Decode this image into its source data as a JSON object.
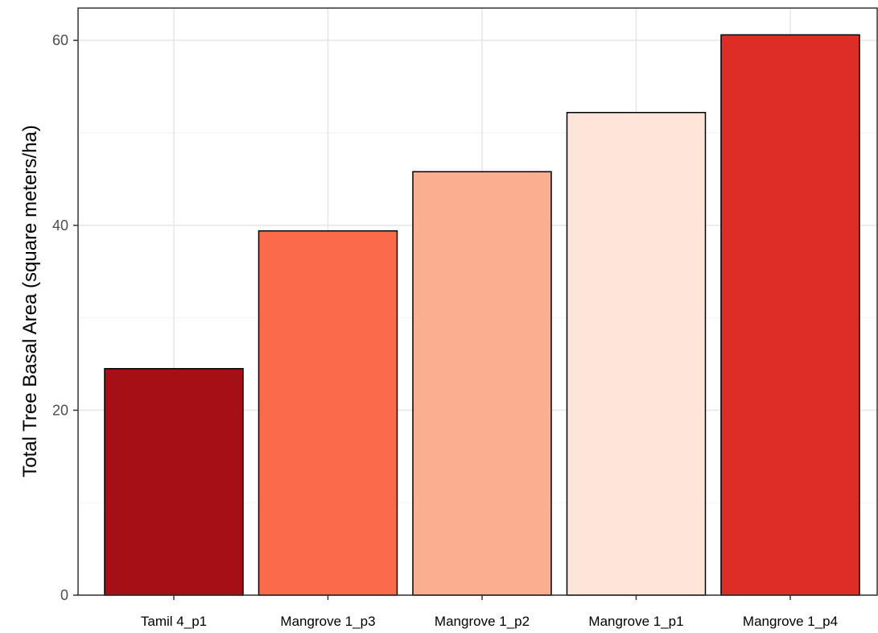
{
  "chart_data": {
    "type": "bar",
    "title": "",
    "xlabel": "",
    "ylabel": "Total Tree Basal Area (square meters/ha)",
    "categories": [
      "Tamil 4_p1",
      "Mangrove 1_p3",
      "Mangrove 1_p2",
      "Mangrove 1_p1",
      "Mangrove 1_p4"
    ],
    "values": [
      24.5,
      39.4,
      45.8,
      52.2,
      60.6
    ],
    "colors": [
      "#A50F15",
      "#FB6A4A",
      "#FCAE91",
      "#FEE5D9",
      "#DE2D26"
    ],
    "ylim": [
      0,
      63.5
    ],
    "yticks": [
      0,
      20,
      40,
      60
    ],
    "grid": true,
    "legend": "none"
  }
}
